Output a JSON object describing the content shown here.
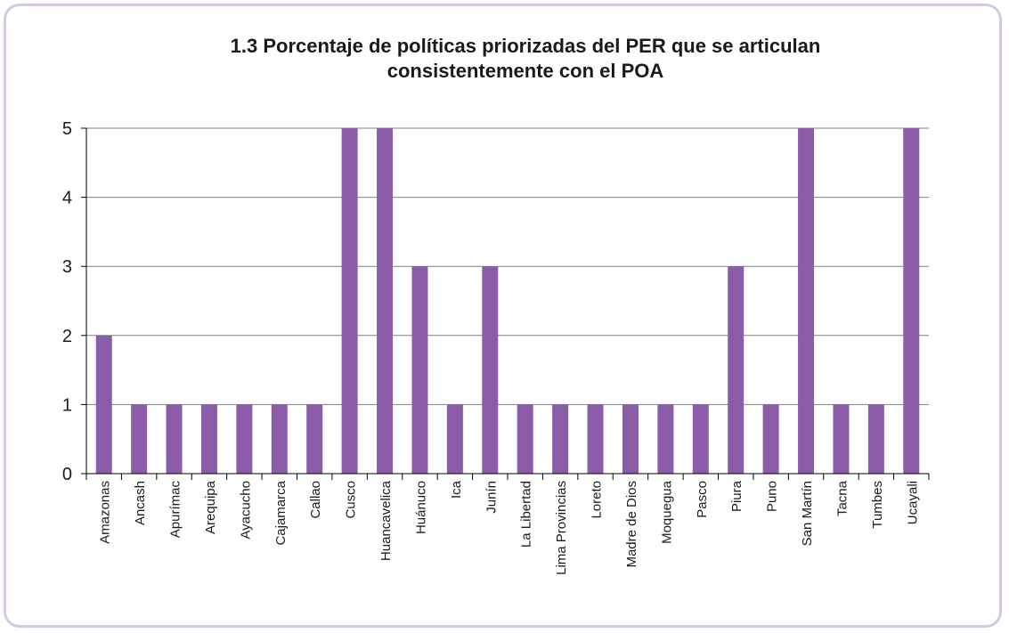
{
  "chart_data": {
    "type": "bar",
    "title_line1": "1.3 Porcentaje de políticas priorizadas del PER que se articulan",
    "title_line2": "consistentemente con el POA",
    "categories": [
      "Amazonas",
      "Ancash",
      "Apurímac",
      "Arequipa",
      "Ayacucho",
      "Cajamarca",
      "Callao",
      "Cusco",
      "Huancavelica",
      "Huánuco",
      "Ica",
      "Junín",
      "La Libertad",
      "Lima Provincias",
      "Loreto",
      "Madre de Dios",
      "Moquegua",
      "Pasco",
      "Piura",
      "Puno",
      "San Martín",
      "Tacna",
      "Tumbes",
      "Ucayali"
    ],
    "values": [
      2,
      1,
      1,
      1,
      1,
      1,
      1,
      5,
      5,
      3,
      1,
      3,
      1,
      1,
      1,
      1,
      1,
      1,
      3,
      1,
      5,
      1,
      1,
      5
    ],
    "ylim": [
      0,
      5
    ],
    "yticks": [
      "0",
      "1",
      "2",
      "3",
      "4",
      "5"
    ],
    "grid": true,
    "bar_color": "#8b5ca8",
    "frame_color": "#d7c8e2"
  }
}
